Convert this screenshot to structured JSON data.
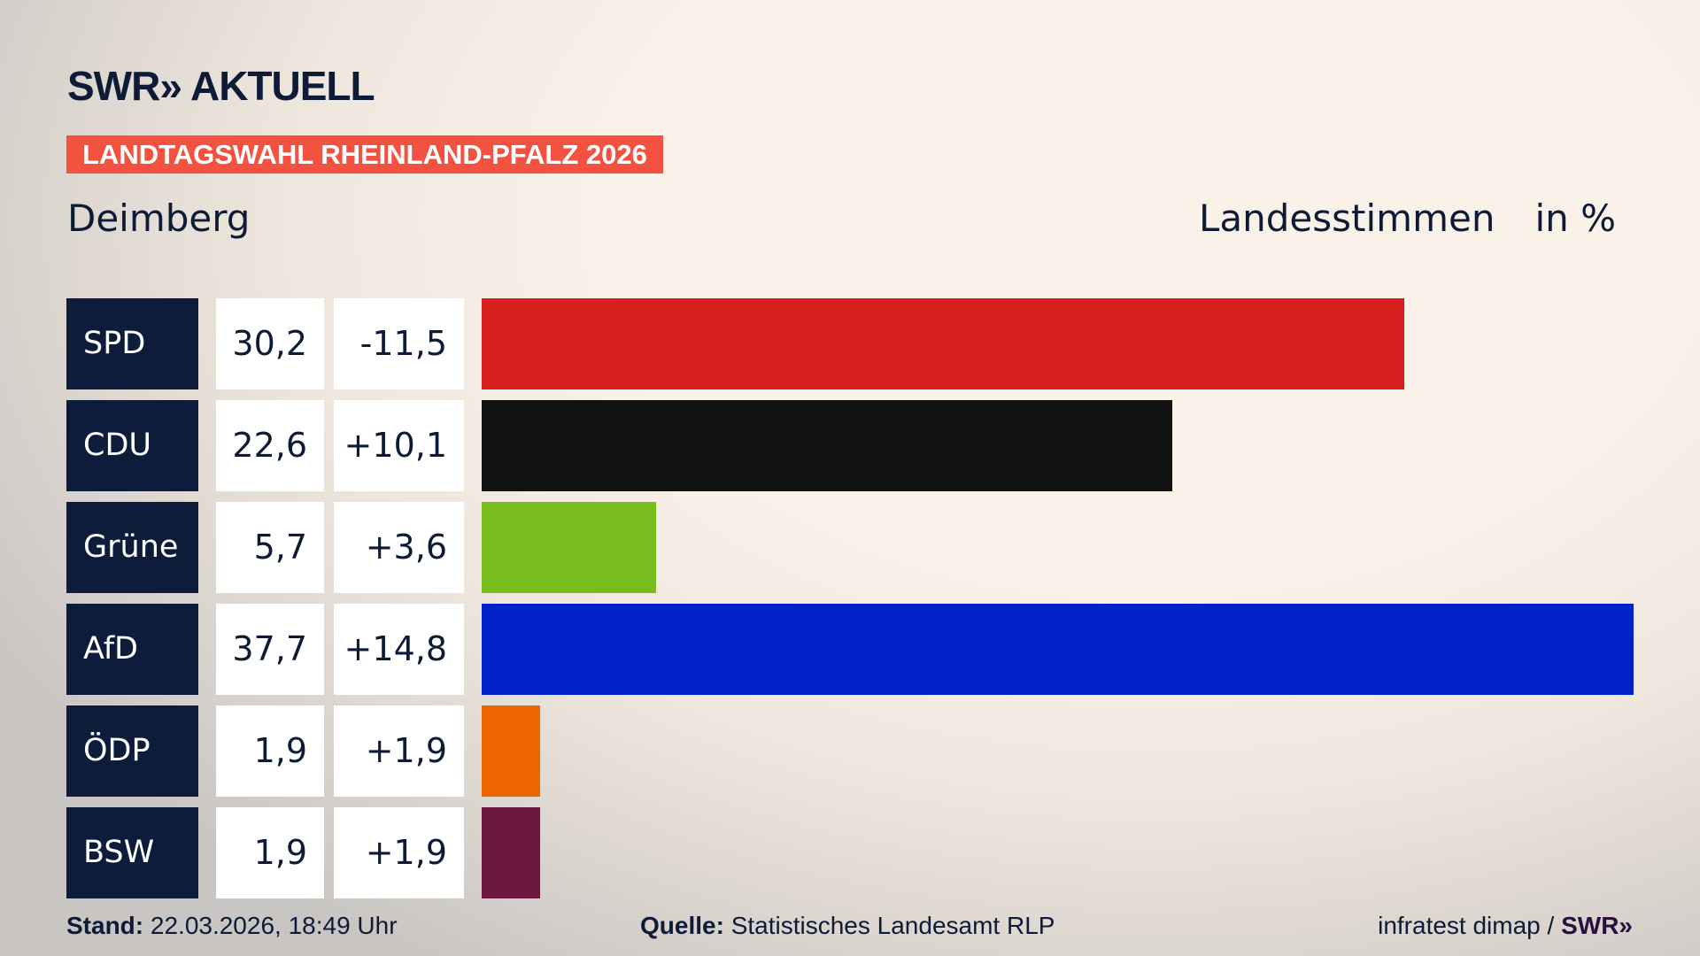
{
  "header": {
    "logo": "SWR» AKTUELL",
    "banner": "LANDTAGSWAHL RHEINLAND-PFALZ 2026",
    "place": "Deimberg",
    "metric": "Landesstimmen",
    "unit": "in %"
  },
  "chart_data": {
    "type": "bar",
    "orientation": "horizontal",
    "xlim": [
      0,
      37.7
    ],
    "categories": [
      "SPD",
      "CDU",
      "Grüne",
      "AfD",
      "ÖDP",
      "BSW"
    ],
    "values": [
      30.2,
      22.6,
      5.7,
      37.7,
      1.9,
      1.9
    ],
    "value_labels": [
      "30,2",
      "22,6",
      "5,7",
      "37,7",
      "1,9",
      "1,9"
    ],
    "diff_labels": [
      "-11,5",
      "+10,1",
      "+3,6",
      "+14,8",
      "+1,9",
      "+1,9"
    ],
    "colors": [
      "#d71f1f",
      "#121212",
      "#79bd1d",
      "#0021c8",
      "#ec6500",
      "#6b1740"
    ]
  },
  "footer": {
    "stand_label": "Stand:",
    "stand_value": "22.03.2026, 18:49 Uhr",
    "quelle_label": "Quelle:",
    "quelle_value": "Statistisches Landesamt RLP",
    "credit": "infratest dimap / ",
    "credit_logo": "SWR»"
  }
}
